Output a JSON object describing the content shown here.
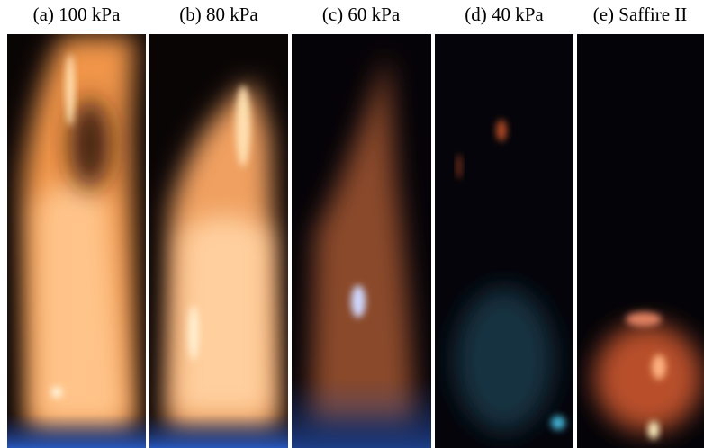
{
  "panels": [
    {
      "label": "(a) 100 kPa"
    },
    {
      "label": "(b) 80 kPa"
    },
    {
      "label": "(c) 60 kPa"
    },
    {
      "label": "(d) 40 kPa"
    },
    {
      "label": "(e) Saffire II"
    }
  ]
}
